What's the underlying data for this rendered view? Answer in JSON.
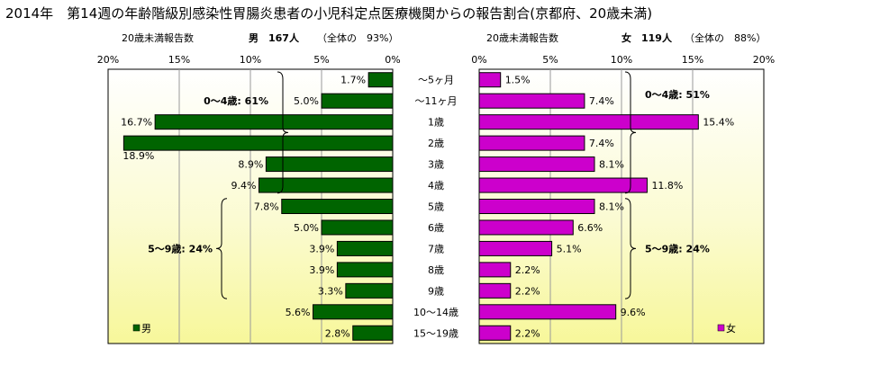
{
  "title": "2014年　第14週の年齢階級別感染性胃腸炎患者の小児科定点医療機関からの報告割合(京都府、20歳未満)",
  "chart_data": {
    "type": "bar",
    "orientation": "horizontal",
    "categories": [
      "～5ヶ月",
      "～11ヶ月",
      "1歳",
      "2歳",
      "3歳",
      "4歳",
      "5歳",
      "6歳",
      "7歳",
      "8歳",
      "9歳",
      "10～14歳",
      "15～19歳"
    ],
    "xlim": [
      0,
      20
    ],
    "grid": true,
    "left_panel": {
      "header_label": "20歳未満報告数",
      "header_main": "男　167人",
      "header_share": "（全体の　93%）",
      "ticks": [
        "20%",
        "15%",
        "10%",
        "5%",
        "0%"
      ],
      "legend": "男",
      "color": "#006400",
      "values": [
        1.7,
        5.0,
        16.7,
        18.9,
        8.9,
        9.4,
        7.8,
        5.0,
        3.9,
        3.9,
        3.3,
        5.6,
        2.8
      ],
      "labels": [
        "1.7%",
        "5.0%",
        "16.7%",
        "18.9%",
        "8.9%",
        "9.4%",
        "7.8%",
        "5.0%",
        "3.9%",
        "3.9%",
        "3.3%",
        "5.6%",
        "2.8%"
      ],
      "groups": [
        {
          "label": "0～4歳: 61%",
          "from": 0,
          "to": 5
        },
        {
          "label": "5～9歳: 24%",
          "from": 6,
          "to": 10
        }
      ]
    },
    "right_panel": {
      "header_label": "20歳未満報告数",
      "header_main": "女　119人",
      "header_share": "（全体の　88%）",
      "ticks": [
        "0%",
        "5%",
        "10%",
        "15%",
        "20%"
      ],
      "legend": "女",
      "color": "#cc00cc",
      "values": [
        1.5,
        7.4,
        15.4,
        7.4,
        8.1,
        11.8,
        8.1,
        6.6,
        5.1,
        2.2,
        2.2,
        9.6,
        2.2
      ],
      "labels": [
        "1.5%",
        "7.4%",
        "15.4%",
        "7.4%",
        "8.1%",
        "11.8%",
        "8.1%",
        "6.6%",
        "5.1%",
        "2.2%",
        "2.2%",
        "9.6%",
        "2.2%"
      ],
      "groups": [
        {
          "label": "0～4歳: 51%",
          "from": 0,
          "to": 5
        },
        {
          "label": "5～9歳: 24%",
          "from": 6,
          "to": 10
        }
      ]
    }
  }
}
